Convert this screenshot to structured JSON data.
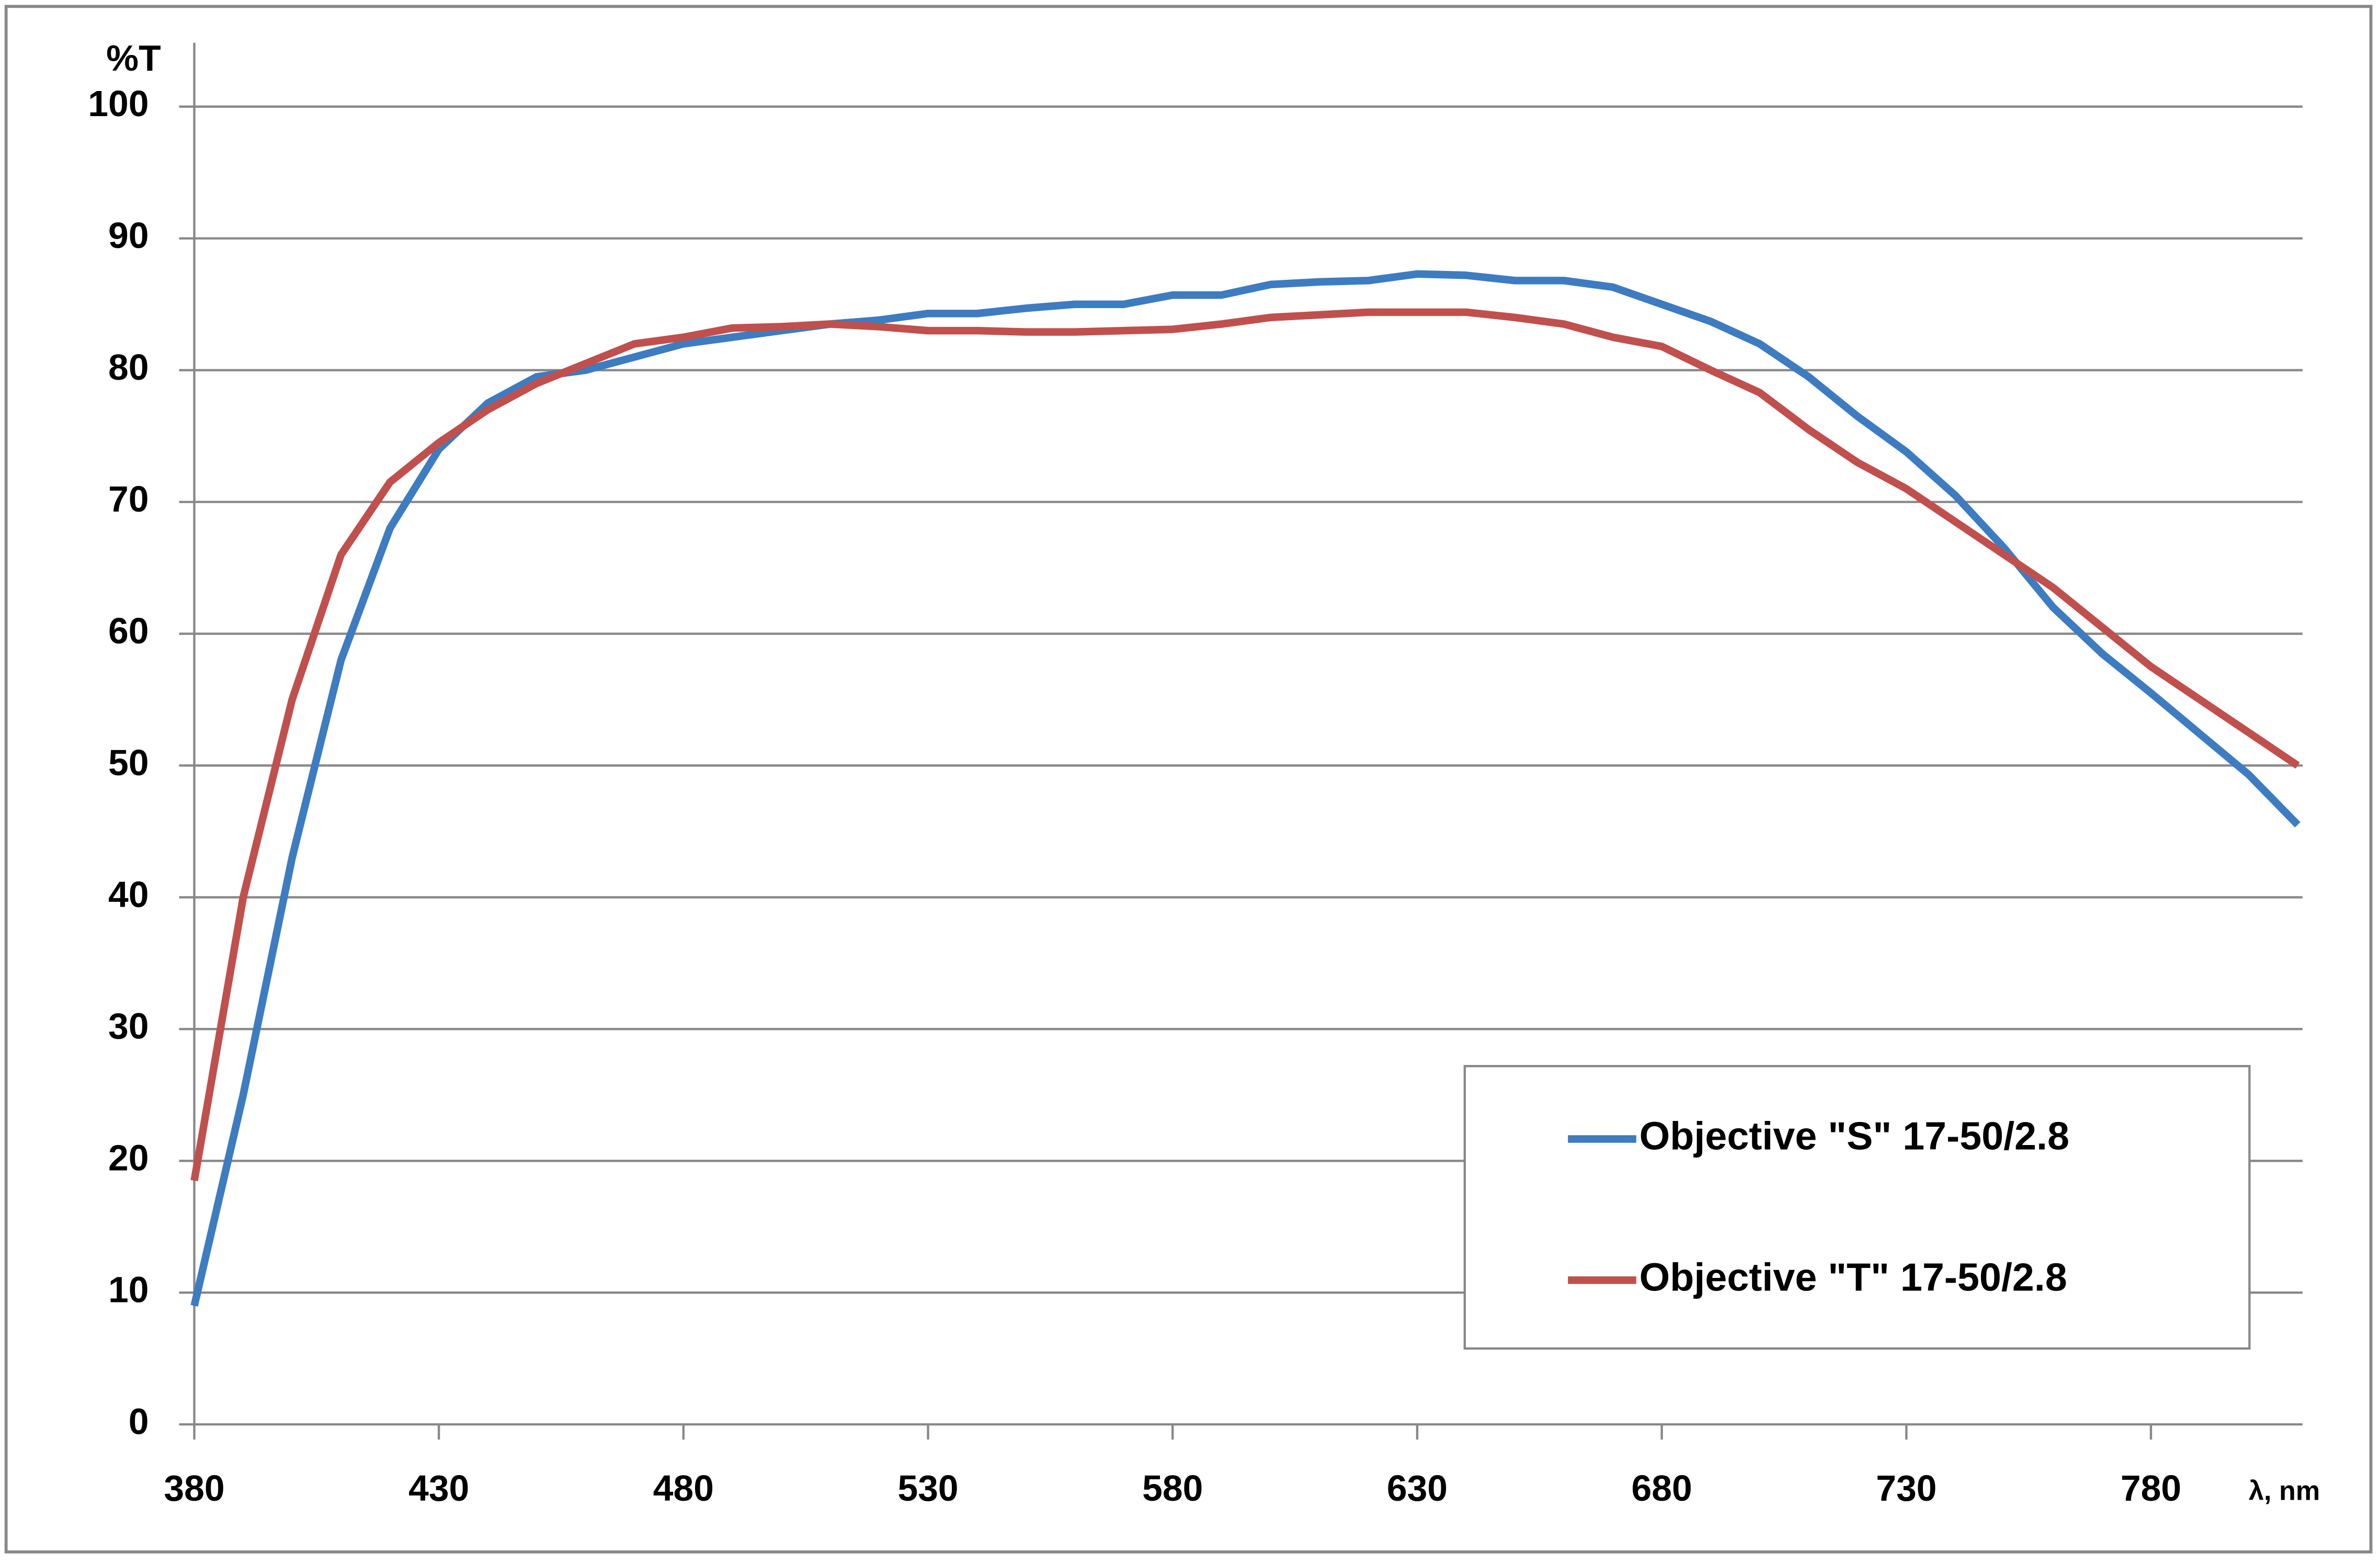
{
  "chart_data": {
    "type": "line",
    "y_label": "%T",
    "x_label": "λ, nm",
    "x": [
      380,
      390,
      400,
      410,
      420,
      430,
      440,
      450,
      460,
      470,
      480,
      490,
      500,
      510,
      520,
      530,
      540,
      550,
      560,
      570,
      580,
      590,
      600,
      610,
      620,
      630,
      640,
      650,
      660,
      670,
      680,
      690,
      700,
      710,
      720,
      730,
      740,
      750,
      760,
      770,
      780,
      790,
      800,
      810
    ],
    "series": [
      {
        "name": "Objective \"S\" 17-50/2.8",
        "color": "#3d7cc0",
        "values": [
          9,
          25,
          43,
          58,
          68,
          74,
          77.5,
          79.5,
          80,
          81,
          82,
          82.5,
          83,
          83.5,
          83.8,
          84.3,
          84.3,
          84.7,
          85,
          85,
          85.7,
          85.7,
          86.5,
          86.7,
          86.8,
          87.3,
          87.2,
          86.8,
          86.8,
          86.3,
          85,
          83.7,
          82,
          79.5,
          76.5,
          73.8,
          70.5,
          66.5,
          62,
          58.5,
          55.5,
          52.4,
          49.3,
          45.5
        ]
      },
      {
        "name": "Objective \"T\" 17-50/2.8",
        "color": "#c0504d",
        "values": [
          18.5,
          40,
          55,
          66,
          71.5,
          74.5,
          77,
          79,
          80.5,
          82,
          82.5,
          83.2,
          83.3,
          83.5,
          83.3,
          83,
          83,
          82.9,
          82.9,
          83,
          83.1,
          83.5,
          84,
          84.2,
          84.4,
          84.4,
          84.4,
          84,
          83.5,
          82.5,
          81.8,
          80,
          78.3,
          75.5,
          73,
          71,
          68.5,
          66,
          63.5,
          60.5,
          57.5,
          55,
          52.5,
          50
        ]
      }
    ],
    "xlim": [
      380,
      811
    ],
    "ylim": [
      0,
      100
    ],
    "xticks": [
      380,
      430,
      480,
      530,
      580,
      630,
      680,
      730,
      780
    ],
    "yticks": [
      0,
      10,
      20,
      30,
      40,
      50,
      60,
      70,
      80,
      90,
      100
    ],
    "grid": true,
    "legend": "lower right"
  }
}
